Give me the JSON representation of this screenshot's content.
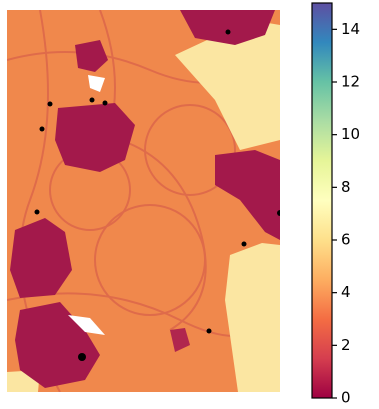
{
  "chart_data": {
    "type": "image",
    "colormap": [
      "#9e0142",
      "#d53e4f",
      "#f46d43",
      "#fdae61",
      "#fee08b",
      "#ffffbf",
      "#e6f598",
      "#abdda4",
      "#66c2a5",
      "#3288bd",
      "#5e4fa2"
    ],
    "clim": [
      0,
      15
    ],
    "cticks": [
      0,
      2,
      4,
      6,
      8,
      10,
      12,
      14
    ]
  }
}
